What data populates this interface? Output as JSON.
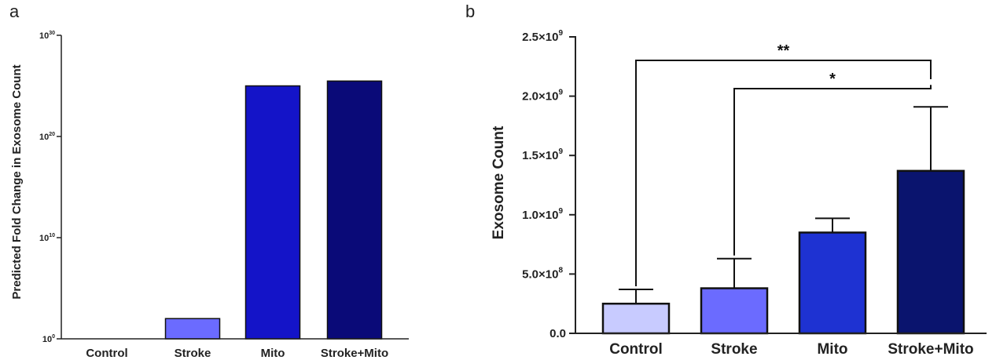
{
  "chart_data": [
    {
      "panel_label": "a",
      "type": "bar",
      "ylabel": "Predicted Fold Change in Exosome Count",
      "yscale": "log",
      "ylim": [
        1,
        1e+30
      ],
      "yticks": [
        {
          "value": 1,
          "base": "10",
          "exp": "0"
        },
        {
          "value": 10000000000.0,
          "base": "10",
          "exp": "10"
        },
        {
          "value": 1e+20,
          "base": "10",
          "exp": "20"
        },
        {
          "value": 1e+30,
          "base": "10",
          "exp": "30"
        }
      ],
      "categories": [
        "Control",
        "Stroke",
        "Mito",
        "Stroke+Mito"
      ],
      "values": [
        1,
        100.0,
        1e+25,
        3e+25
      ],
      "colors": [
        "#c8cbff",
        "#6b6bff",
        "#1414c8",
        "#0a0a78"
      ],
      "grid": false
    },
    {
      "panel_label": "b",
      "type": "bar",
      "ylabel": "Exosome Count",
      "yscale": "linear",
      "ylim": [
        0,
        2500000000
      ],
      "yticks": [
        {
          "value": 0,
          "label": "0.0",
          "exp": ""
        },
        {
          "value": 500000000,
          "label": "5.0×10",
          "exp": "8"
        },
        {
          "value": 1000000000,
          "label": "1.0×10",
          "exp": "9"
        },
        {
          "value": 1500000000,
          "label": "1.5×10",
          "exp": "9"
        },
        {
          "value": 2000000000,
          "label": "2.0×10",
          "exp": "9"
        },
        {
          "value": 2500000000,
          "label": "2.5×10",
          "exp": "9"
        }
      ],
      "categories": [
        "Control",
        "Stroke",
        "Mito",
        "Stroke+Mito"
      ],
      "values": [
        250000000,
        380000000,
        850000000,
        1370000000
      ],
      "errors": [
        120000000,
        250000000,
        120000000,
        540000000
      ],
      "colors": [
        "#c8cbff",
        "#6b6bff",
        "#1e32d2",
        "#0a146e"
      ],
      "significance": [
        {
          "from": "Control",
          "to": "Stroke+Mito",
          "label": "**"
        },
        {
          "from": "Stroke",
          "to": "Stroke+Mito",
          "label": "*"
        }
      ],
      "grid": false
    }
  ]
}
